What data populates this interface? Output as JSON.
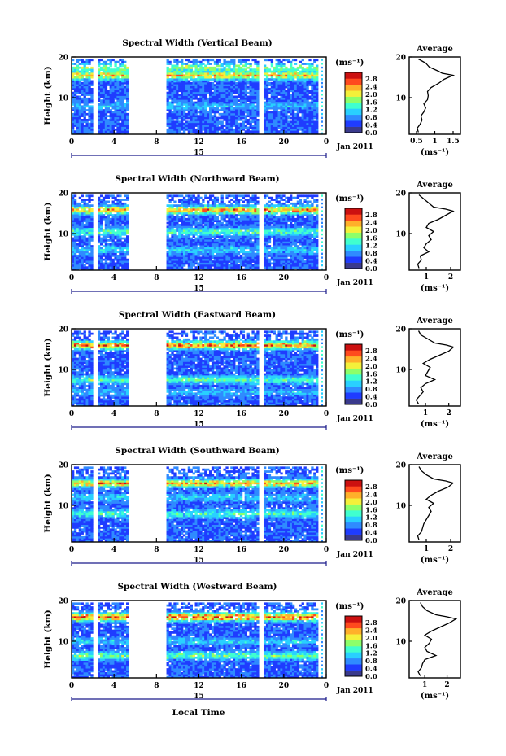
{
  "figure": {
    "date_label": "Jan 2011",
    "xlabel": "Local Time",
    "colorbar_unit": "(ms⁻¹)",
    "colorbar_ticks": [
      "2.8",
      "2.4",
      "2.0",
      "1.6",
      "1.2",
      "0.8",
      "0.4",
      "0.0"
    ],
    "colors": {
      "background": "#ffffff",
      "axis": "#000000",
      "date_line": "#1a1a8a",
      "colormap": [
        "#3a3a8c",
        "#1f3cff",
        "#2f8bff",
        "#29d0ff",
        "#40ffcf",
        "#8dff6a",
        "#f4f03a",
        "#ffb02a",
        "#ff4a1e",
        "#cc1010"
      ]
    }
  },
  "chart_data": [
    {
      "type": "heatmap",
      "title": "Spectral Width (Vertical Beam)",
      "xlabel": "Local Time",
      "ylabel": "Height (km)",
      "x_ticks": [
        "0",
        "4",
        "8",
        "12",
        "16",
        "20",
        "0"
      ],
      "y_ticks": [
        "20",
        "10"
      ],
      "xlim": [
        0,
        24
      ],
      "ylim": [
        1,
        20
      ],
      "date_tick": "15",
      "data_gaps_hours": [
        [
          1.9,
          2.5
        ],
        [
          5.4,
          8.9
        ],
        [
          17.6,
          18.2
        ]
      ],
      "max_echo_height_km": 19.5,
      "layers": [
        {
          "height_km": 15.5,
          "width_ms": 2.2
        },
        {
          "height_km": 17.5,
          "width_ms": 1.6
        },
        {
          "height_km": 8.0,
          "width_ms": 0.9
        }
      ],
      "average": {
        "title": "Average",
        "xlabel": "(ms⁻¹)",
        "x_ticks": [
          "0.5",
          "1",
          "1.5"
        ],
        "xlim": [
          0.3,
          1.7
        ],
        "y_ticks": [
          "20",
          "10"
        ],
        "ylim": [
          1,
          20
        ],
        "profile": [
          [
            1.5,
            0.55
          ],
          [
            2.5,
            0.52
          ],
          [
            3.5,
            0.6
          ],
          [
            4.5,
            0.65
          ],
          [
            5.5,
            0.62
          ],
          [
            6.5,
            0.7
          ],
          [
            7.5,
            0.75
          ],
          [
            8.5,
            0.7
          ],
          [
            9.5,
            0.8
          ],
          [
            10.5,
            0.82
          ],
          [
            11.5,
            0.8
          ],
          [
            12.5,
            0.9
          ],
          [
            13.5,
            1.1
          ],
          [
            14.5,
            1.25
          ],
          [
            15.5,
            1.5
          ],
          [
            16.0,
            1.2
          ],
          [
            16.5,
            1.1
          ],
          [
            17.5,
            0.85
          ],
          [
            18.5,
            0.75
          ],
          [
            19.5,
            0.55
          ]
        ]
      }
    },
    {
      "type": "heatmap",
      "title": "Spectral Width (Northward Beam)",
      "xlabel": "Local Time",
      "ylabel": "Height (km)",
      "x_ticks": [
        "0",
        "4",
        "8",
        "12",
        "16",
        "20",
        "0"
      ],
      "y_ticks": [
        "20",
        "10"
      ],
      "xlim": [
        0,
        24
      ],
      "ylim": [
        1,
        20
      ],
      "date_tick": "15",
      "data_gaps_hours": [
        [
          1.9,
          2.5
        ],
        [
          5.4,
          8.9
        ],
        [
          17.6,
          18.2
        ]
      ],
      "max_echo_height_km": 19.5,
      "layers": [
        {
          "height_km": 15.8,
          "width_ms": 2.4
        },
        {
          "height_km": 10.5,
          "width_ms": 1.4
        },
        {
          "height_km": 6.0,
          "width_ms": 1.0
        }
      ],
      "average": {
        "title": "Average",
        "xlabel": "(ms⁻¹)",
        "x_ticks": [
          "1",
          "2"
        ],
        "xlim": [
          0.3,
          2.4
        ],
        "y_ticks": [
          "20",
          "10"
        ],
        "ylim": [
          1,
          20
        ],
        "profile": [
          [
            1.5,
            0.7
          ],
          [
            2.5,
            0.65
          ],
          [
            3.5,
            0.8
          ],
          [
            4.5,
            0.75
          ],
          [
            5.5,
            1.1
          ],
          [
            6.5,
            0.9
          ],
          [
            7.5,
            1.0
          ],
          [
            8.5,
            1.2
          ],
          [
            9.5,
            1.1
          ],
          [
            10.5,
            1.3
          ],
          [
            11.5,
            1.0
          ],
          [
            12.5,
            1.1
          ],
          [
            13.5,
            1.5
          ],
          [
            14.5,
            1.8
          ],
          [
            15.5,
            2.1
          ],
          [
            16.0,
            1.8
          ],
          [
            16.5,
            1.3
          ],
          [
            17.5,
            1.1
          ],
          [
            18.5,
            0.9
          ],
          [
            19.5,
            0.7
          ]
        ]
      }
    },
    {
      "type": "heatmap",
      "title": "Spectral Width (Eastward Beam)",
      "xlabel": "Local Time",
      "ylabel": "Height (km)",
      "x_ticks": [
        "0",
        "4",
        "8",
        "12",
        "16",
        "20",
        "0"
      ],
      "y_ticks": [
        "20",
        "10"
      ],
      "xlim": [
        0,
        24
      ],
      "ylim": [
        1,
        20
      ],
      "date_tick": "15",
      "data_gaps_hours": [
        [
          1.9,
          2.5
        ],
        [
          5.4,
          8.9
        ],
        [
          17.6,
          18.2
        ]
      ],
      "max_echo_height_km": 19.5,
      "layers": [
        {
          "height_km": 16.0,
          "width_ms": 2.5
        },
        {
          "height_km": 7.5,
          "width_ms": 1.4
        },
        {
          "height_km": 4.5,
          "width_ms": 0.9
        }
      ],
      "average": {
        "title": "Average",
        "xlabel": "(ms⁻¹)",
        "x_ticks": [
          "1",
          "2"
        ],
        "xlim": [
          0.3,
          2.5
        ],
        "y_ticks": [
          "20",
          "10"
        ],
        "ylim": [
          1,
          20
        ],
        "profile": [
          [
            1.5,
            0.7
          ],
          [
            2.5,
            0.6
          ],
          [
            3.5,
            0.75
          ],
          [
            4.5,
            0.9
          ],
          [
            5.5,
            0.8
          ],
          [
            6.5,
            1.0
          ],
          [
            7.5,
            1.4
          ],
          [
            8.5,
            1.0
          ],
          [
            9.5,
            1.1
          ],
          [
            10.5,
            1.2
          ],
          [
            11.5,
            0.9
          ],
          [
            12.5,
            1.2
          ],
          [
            13.5,
            1.6
          ],
          [
            14.5,
            2.0
          ],
          [
            15.5,
            2.2
          ],
          [
            16.0,
            1.9
          ],
          [
            16.5,
            1.4
          ],
          [
            17.5,
            1.1
          ],
          [
            18.5,
            0.8
          ],
          [
            19.5,
            0.7
          ]
        ]
      }
    },
    {
      "type": "heatmap",
      "title": "Spectral Width (Southward Beam)",
      "xlabel": "Local Time",
      "ylabel": "Height (km)",
      "x_ticks": [
        "0",
        "4",
        "8",
        "12",
        "16",
        "20",
        "0"
      ],
      "y_ticks": [
        "20",
        "10"
      ],
      "xlim": [
        0,
        24
      ],
      "ylim": [
        1,
        20
      ],
      "date_tick": "15",
      "data_gaps_hours": [
        [
          1.9,
          2.5
        ],
        [
          5.4,
          8.9
        ],
        [
          17.6,
          18.2
        ]
      ],
      "max_echo_height_km": 19.5,
      "layers": [
        {
          "height_km": 15.5,
          "width_ms": 2.3
        },
        {
          "height_km": 8.0,
          "width_ms": 1.3
        },
        {
          "height_km": 12.0,
          "width_ms": 1.0
        }
      ],
      "average": {
        "title": "Average",
        "xlabel": "(ms⁻¹)",
        "x_ticks": [
          "1",
          "2"
        ],
        "xlim": [
          0.3,
          2.4
        ],
        "y_ticks": [
          "20",
          "10"
        ],
        "ylim": [
          1,
          20
        ],
        "profile": [
          [
            1.5,
            0.7
          ],
          [
            2.5,
            0.65
          ],
          [
            3.5,
            0.8
          ],
          [
            4.5,
            0.85
          ],
          [
            5.5,
            0.9
          ],
          [
            6.5,
            1.0
          ],
          [
            7.5,
            1.1
          ],
          [
            8.5,
            1.2
          ],
          [
            9.5,
            1.1
          ],
          [
            10.5,
            1.3
          ],
          [
            11.5,
            1.0
          ],
          [
            12.5,
            1.2
          ],
          [
            13.5,
            1.5
          ],
          [
            14.5,
            1.9
          ],
          [
            15.5,
            2.1
          ],
          [
            16.0,
            1.8
          ],
          [
            16.5,
            1.3
          ],
          [
            17.5,
            1.0
          ],
          [
            18.5,
            0.8
          ],
          [
            19.5,
            0.7
          ]
        ]
      }
    },
    {
      "type": "heatmap",
      "title": "Spectral Width (Westward Beam)",
      "xlabel": "Local Time",
      "ylabel": "Height (km)",
      "x_ticks": [
        "0",
        "4",
        "8",
        "12",
        "16",
        "20",
        "0"
      ],
      "y_ticks": [
        "20",
        "10"
      ],
      "xlim": [
        0,
        24
      ],
      "ylim": [
        1,
        20
      ],
      "date_tick": "15",
      "data_gaps_hours": [
        [
          1.9,
          2.5
        ],
        [
          5.4,
          8.9
        ],
        [
          17.6,
          18.2
        ]
      ],
      "max_echo_height_km": 19.5,
      "layers": [
        {
          "height_km": 16.0,
          "width_ms": 2.6
        },
        {
          "height_km": 6.5,
          "width_ms": 1.5
        },
        {
          "height_km": 10.0,
          "width_ms": 1.0
        }
      ],
      "average": {
        "title": "Average",
        "xlabel": "(ms⁻¹)",
        "x_ticks": [
          "1",
          "2"
        ],
        "xlim": [
          0.3,
          2.6
        ],
        "y_ticks": [
          "20",
          "10"
        ],
        "ylim": [
          1,
          20
        ],
        "profile": [
          [
            1.5,
            0.8
          ],
          [
            2.5,
            0.7
          ],
          [
            3.5,
            0.85
          ],
          [
            4.5,
            0.9
          ],
          [
            5.5,
            1.0
          ],
          [
            6.5,
            1.5
          ],
          [
            7.5,
            1.1
          ],
          [
            8.5,
            1.0
          ],
          [
            9.5,
            1.2
          ],
          [
            10.5,
            1.3
          ],
          [
            11.5,
            1.0
          ],
          [
            12.5,
            1.3
          ],
          [
            13.5,
            1.7
          ],
          [
            14.5,
            2.1
          ],
          [
            15.5,
            2.4
          ],
          [
            16.0,
            2.0
          ],
          [
            16.5,
            1.5
          ],
          [
            17.5,
            1.1
          ],
          [
            18.5,
            0.9
          ],
          [
            19.5,
            0.8
          ]
        ]
      }
    }
  ]
}
